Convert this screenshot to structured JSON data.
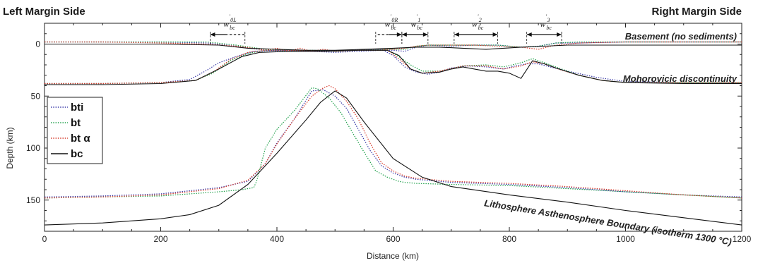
{
  "chart_data": {
    "type": "line",
    "left_title": "Left Margin Side",
    "right_title": "Right Margin Side",
    "xlabel": "Distance (km)",
    "ylabel": "Depth (km)",
    "xlim": [
      0,
      1200
    ],
    "ylim": [
      180,
      -20
    ],
    "y_inverted": true,
    "grid": false,
    "legend_position": "left",
    "x_ticks": [
      0,
      200,
      400,
      600,
      800,
      1000,
      1200
    ],
    "y_ticks": [
      0,
      50,
      100,
      150
    ],
    "colors": {
      "bti": "#3a3aa8",
      "bt": "#1fa04a",
      "bta": "#d63a2a",
      "bc": "#111111"
    },
    "annotations": [
      {
        "text": "Basement (no sediments)"
      },
      {
        "text": "Mohorovicic discontinuity"
      },
      {
        "text": "Lithosphere Asthenosphere Boundary (isotherm 1300 °C)"
      }
    ],
    "w_labels": [
      {
        "main": "w",
        "sub": "bc",
        "sup": "0L",
        "from": 285,
        "to": 345,
        "arrow": "left"
      },
      {
        "main": "w",
        "sub": "bc",
        "sup": "0R",
        "from": 570,
        "to": 615,
        "arrow": "right"
      },
      {
        "main": "w",
        "sub": "bc",
        "sup": "1",
        "from": 615,
        "to": 660,
        "arrow": "both"
      },
      {
        "main": "w",
        "sub": "bc",
        "sup": "2",
        "from": 705,
        "to": 780,
        "arrow": "both"
      },
      {
        "main": "w",
        "sub": "bc",
        "sup": "3",
        "from": 830,
        "to": 890,
        "arrow": "both"
      }
    ],
    "legend": [
      {
        "key": "bti",
        "label": "bti",
        "style": "dotted"
      },
      {
        "key": "bt",
        "label": "bt",
        "style": "dotted"
      },
      {
        "key": "bta",
        "label": "bt α",
        "style": "dotted"
      },
      {
        "key": "bc",
        "label": "bc",
        "style": "solid"
      }
    ],
    "series": [
      {
        "name": "bti",
        "key": "bti",
        "layer": "basement",
        "x": [
          0,
          100,
          200,
          280,
          330,
          380,
          420,
          460,
          500,
          540,
          580,
          600,
          620,
          640,
          660,
          700,
          740,
          780,
          820,
          850,
          880,
          920,
          1000,
          1100,
          1200
        ],
        "y": [
          -2,
          -2,
          -2,
          -1,
          2,
          6,
          7,
          7,
          8,
          7,
          6,
          6,
          7,
          3,
          1,
          2,
          1,
          1,
          3,
          2,
          -1,
          -1,
          -2,
          -2,
          -2
        ]
      },
      {
        "name": "bt",
        "key": "bt",
        "layer": "basement",
        "x": [
          0,
          100,
          200,
          280,
          330,
          380,
          420,
          460,
          500,
          540,
          580,
          600,
          620,
          640,
          660,
          700,
          740,
          780,
          820,
          850,
          880,
          920,
          1000,
          1100,
          1200
        ],
        "y": [
          -2,
          -2,
          -2,
          -2,
          1,
          5,
          7,
          6,
          7,
          6,
          5,
          5,
          5,
          2,
          1,
          1,
          1,
          1,
          3,
          2,
          -1,
          -2,
          -2,
          -2,
          -2
        ]
      },
      {
        "name": "bt α",
        "key": "bta",
        "layer": "basement",
        "x": [
          0,
          100,
          200,
          280,
          330,
          360,
          380,
          400,
          420,
          440,
          460,
          480,
          500,
          540,
          580,
          600,
          620,
          640,
          660,
          700,
          740,
          780,
          820,
          850,
          880,
          920,
          1000,
          1100,
          1200
        ],
        "y": [
          -2,
          -2,
          -1,
          0,
          2,
          4,
          6,
          4,
          7,
          4,
          7,
          5,
          7,
          6,
          5,
          5,
          4,
          2,
          1,
          1,
          1,
          2,
          3,
          5,
          1,
          -1,
          -2,
          -2,
          -2
        ]
      },
      {
        "name": "bc",
        "key": "bc",
        "layer": "basement",
        "x": [
          0,
          100,
          200,
          300,
          350,
          400,
          450,
          500,
          550,
          600,
          640,
          680,
          720,
          760,
          790,
          820,
          860,
          900,
          1000,
          1100,
          1200
        ],
        "y": [
          0,
          0,
          0,
          1,
          4,
          5,
          6,
          6,
          5,
          4,
          3,
          3,
          4,
          5,
          4,
          3,
          2,
          1,
          1,
          1,
          1
        ]
      },
      {
        "name": "bti",
        "key": "bti",
        "layer": "moho",
        "x": [
          0,
          100,
          200,
          250,
          280,
          300,
          330,
          360,
          400,
          460,
          520,
          580,
          600,
          620,
          640,
          660,
          680,
          700,
          730,
          760,
          790,
          810,
          830,
          850,
          870,
          900,
          950,
          1000,
          1100,
          1200
        ],
        "y": [
          38,
          38,
          37,
          34,
          25,
          18,
          12,
          7,
          6,
          7,
          6,
          5,
          11,
          22,
          27,
          29,
          27,
          23,
          21,
          22,
          24,
          21,
          19,
          19,
          22,
          26,
          32,
          36,
          37,
          37
        ]
      },
      {
        "name": "bt",
        "key": "bt",
        "layer": "moho",
        "x": [
          0,
          100,
          200,
          260,
          290,
          320,
          350,
          380,
          420,
          480,
          540,
          590,
          610,
          630,
          650,
          680,
          720,
          760,
          790,
          820,
          840,
          860,
          890,
          920,
          960,
          1000,
          1100,
          1200
        ],
        "y": [
          38,
          38,
          37,
          35,
          28,
          16,
          9,
          6,
          6,
          7,
          6,
          6,
          12,
          20,
          26,
          26,
          21,
          20,
          22,
          18,
          14,
          18,
          24,
          30,
          35,
          37,
          37,
          37
        ]
      },
      {
        "name": "bt α",
        "key": "bta",
        "layer": "moho",
        "x": [
          0,
          100,
          200,
          260,
          290,
          320,
          350,
          380,
          420,
          480,
          540,
          590,
          610,
          630,
          650,
          680,
          720,
          760,
          790,
          820,
          840,
          860,
          890,
          920,
          960,
          1000,
          1100,
          1200
        ],
        "y": [
          38,
          38,
          37,
          35,
          27,
          15,
          8,
          6,
          6,
          7,
          6,
          6,
          14,
          24,
          28,
          26,
          21,
          21,
          24,
          21,
          17,
          19,
          25,
          30,
          35,
          37,
          37,
          37
        ]
      },
      {
        "name": "bc",
        "key": "bc",
        "layer": "moho",
        "x": [
          0,
          100,
          200,
          260,
          300,
          340,
          370,
          420,
          480,
          540,
          590,
          610,
          630,
          650,
          680,
          700,
          720,
          740,
          760,
          780,
          800,
          820,
          840,
          860,
          880,
          920,
          960,
          1000,
          1100,
          1200
        ],
        "y": [
          39,
          39,
          38,
          35,
          24,
          12,
          8,
          7,
          7,
          6,
          6,
          11,
          24,
          28,
          27,
          24,
          22,
          24,
          26,
          26,
          28,
          33,
          16,
          19,
          23,
          30,
          35,
          37,
          38,
          38
        ]
      },
      {
        "name": "bti",
        "key": "bti",
        "layer": "lab",
        "x": [
          0,
          100,
          200,
          300,
          350,
          380,
          400,
          430,
          460,
          480,
          500,
          520,
          540,
          560,
          580,
          600,
          620,
          640,
          700,
          800,
          900,
          1000,
          1100,
          1200
        ],
        "y": [
          147,
          146,
          144,
          138,
          132,
          115,
          95,
          72,
          45,
          44,
          50,
          62,
          82,
          102,
          117,
          124,
          128,
          130,
          133,
          135,
          138,
          142,
          145,
          147
        ]
      },
      {
        "name": "bt",
        "key": "bt",
        "layer": "lab",
        "x": [
          0,
          100,
          200,
          300,
          340,
          360,
          365,
          380,
          400,
          430,
          460,
          470,
          490,
          510,
          530,
          550,
          570,
          590,
          600,
          610,
          620,
          640,
          700,
          800,
          900,
          1000,
          1100,
          1200
        ],
        "y": [
          148,
          147,
          146,
          142,
          140,
          138,
          132,
          100,
          82,
          64,
          42,
          43,
          52,
          66,
          85,
          104,
          122,
          128,
          130,
          132,
          133,
          134,
          135,
          136,
          139,
          142,
          145,
          148
        ]
      },
      {
        "name": "bt α",
        "key": "bta",
        "layer": "lab",
        "x": [
          0,
          100,
          200,
          300,
          350,
          380,
          400,
          430,
          460,
          480,
          490,
          500,
          520,
          540,
          560,
          580,
          600,
          620,
          640,
          700,
          800,
          900,
          1000,
          1100,
          1200
        ],
        "y": [
          148,
          147,
          145,
          139,
          131,
          115,
          96,
          72,
          50,
          42,
          40,
          43,
          55,
          72,
          95,
          114,
          122,
          127,
          129,
          132,
          134,
          137,
          141,
          145,
          148
        ]
      },
      {
        "name": "bc",
        "key": "bc",
        "layer": "lab",
        "x": [
          0,
          100,
          200,
          250,
          300,
          350,
          400,
          450,
          475,
          500,
          520,
          550,
          600,
          650,
          700,
          800,
          900,
          1000,
          1100,
          1200
        ],
        "y": [
          174,
          172,
          168,
          164,
          155,
          135,
          105,
          73,
          56,
          45,
          52,
          75,
          110,
          128,
          137,
          145,
          152,
          160,
          167,
          174
        ]
      }
    ]
  }
}
